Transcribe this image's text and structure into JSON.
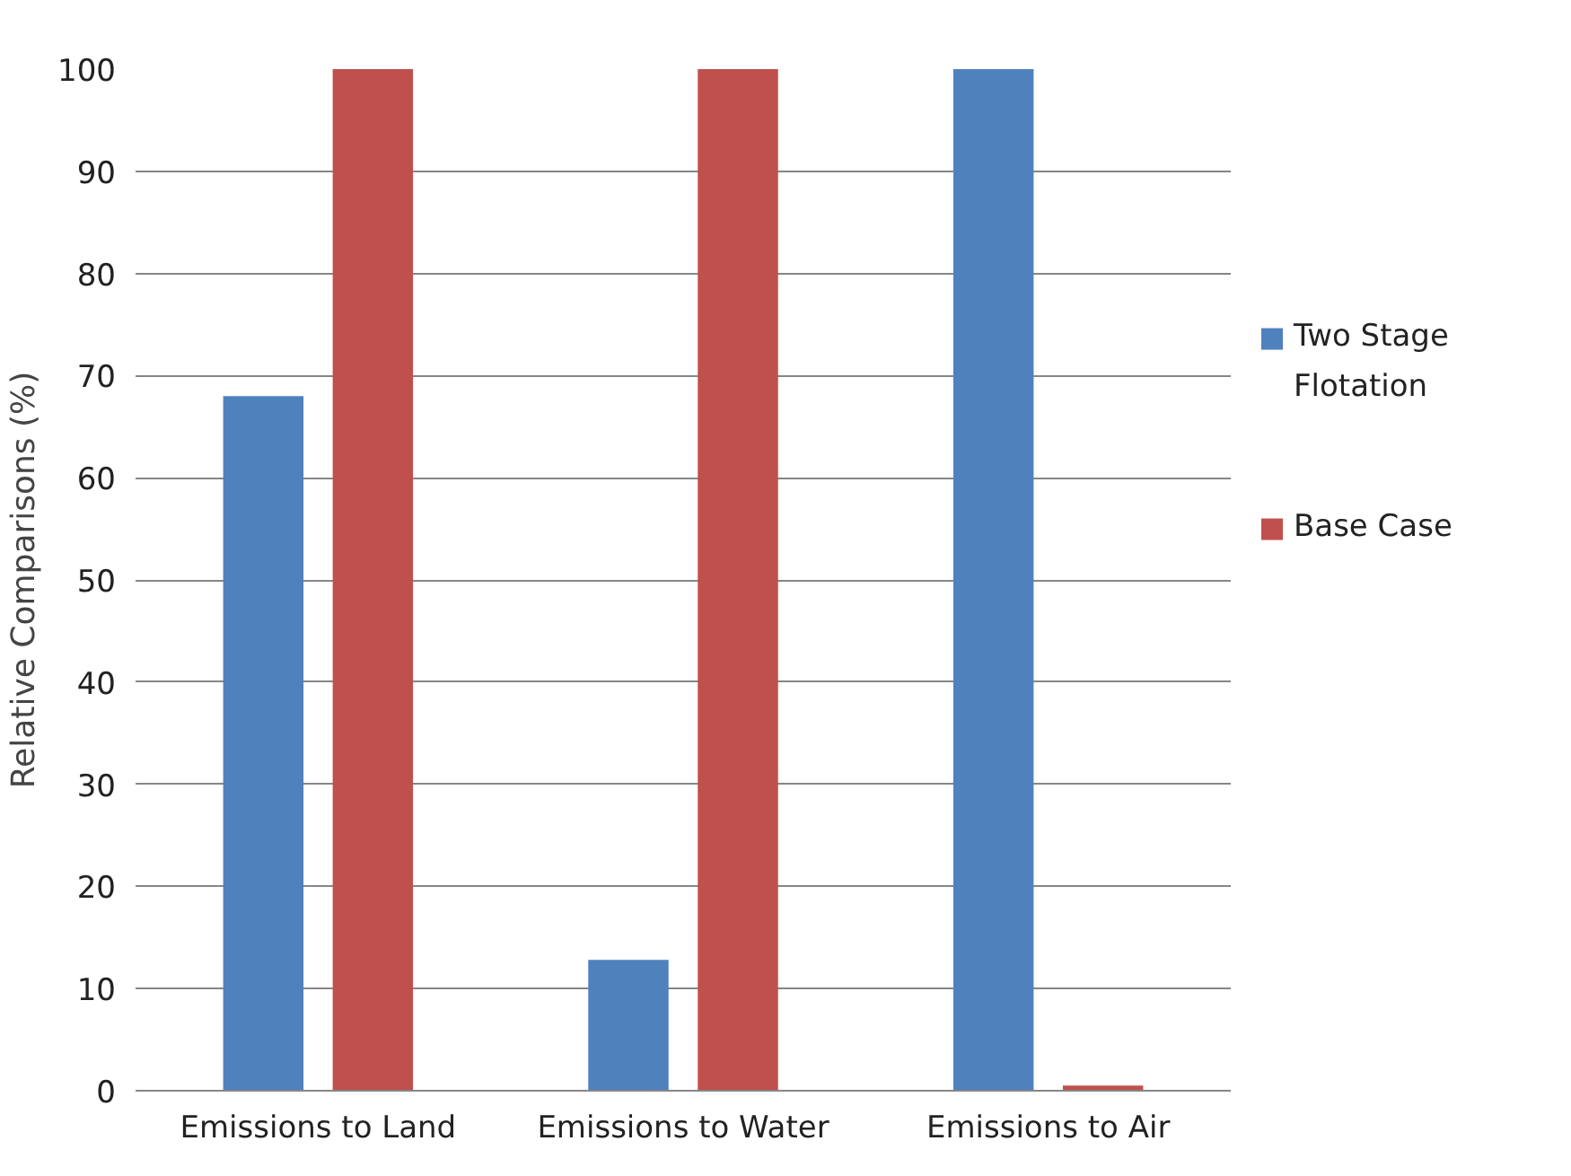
{
  "chart_data": {
    "type": "bar",
    "ylabel": "Relative Comparisons (%)",
    "categories": [
      "Emissions to Land",
      "Emissions to Water",
      "Emissions to Air"
    ],
    "series": [
      {
        "name": "Two Stage Flotation",
        "color": "#4f81bd",
        "values": [
          68,
          12.8,
          100
        ]
      },
      {
        "name": "Base Case",
        "color": "#c0504d",
        "values": [
          100,
          100,
          0.5
        ]
      }
    ],
    "ylim": [
      0,
      100
    ],
    "yticks": [
      0,
      10,
      20,
      30,
      40,
      50,
      60,
      70,
      80,
      90,
      100
    ],
    "grid": "y",
    "legend": "right"
  }
}
